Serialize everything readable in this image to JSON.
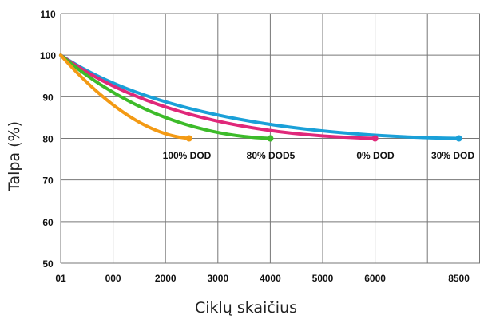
{
  "chart_data": {
    "type": "line",
    "xlabel": "Ciklų skaičius",
    "ylabel": "Talpa (%)",
    "x_tick_labels": [
      "01",
      "000",
      "2000",
      "3000",
      "4000",
      "5000",
      "6000",
      "8500"
    ],
    "y_ticks": [
      50,
      60,
      70,
      80,
      90,
      100,
      110
    ],
    "ylim": [
      50,
      110
    ],
    "grid": true,
    "series": [
      {
        "label": "30% DOD",
        "color": "#1aa0d8",
        "x_end_tick_index": 7,
        "start_value": 100,
        "end_value": 80
      },
      {
        "label": "0% DOD",
        "color": "#e0287a",
        "x_end_tick_index": 6,
        "start_value": 100,
        "end_value": 80
      },
      {
        "label": "80% DOD5",
        "color": "#3dbb2a",
        "x_end_tick_index": 4,
        "start_value": 100,
        "end_value": 80
      },
      {
        "label": "100% DOD",
        "color": "#f39a14",
        "x_end_tick_index": 2.45,
        "start_value": 100,
        "end_value": 80
      }
    ]
  }
}
